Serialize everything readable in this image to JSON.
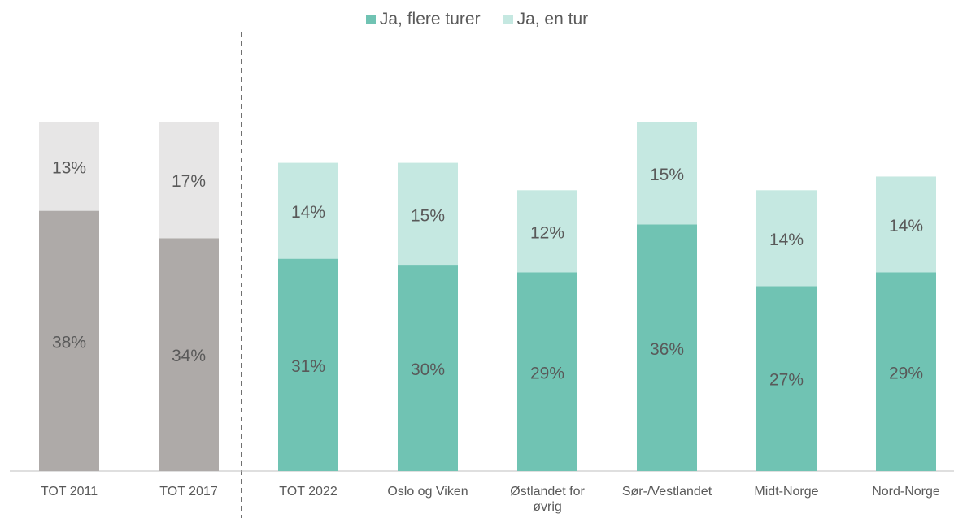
{
  "chart_data": {
    "type": "stacked_bar",
    "categories": [
      "TOT 2011",
      "TOT 2017",
      "TOT 2022",
      "Oslo og Viken",
      "Østlandet for øvrig",
      "Sør-/Vestlandet",
      "Midt-Norge",
      "Nord-Norge"
    ],
    "series": [
      {
        "name": "Ja, flere turer",
        "color": "#70c3b3",
        "point_colors": [
          "#aeaaa8",
          "#aeaaa8",
          "#70c3b3",
          "#70c3b3",
          "#70c3b3",
          "#70c3b3",
          "#70c3b3",
          "#70c3b3"
        ],
        "values": [
          38,
          34,
          31,
          30,
          29,
          36,
          27,
          29
        ],
        "value_labels": [
          "38%",
          "34%",
          "31%",
          "30%",
          "29%",
          "36%",
          "27%",
          "29%"
        ]
      },
      {
        "name": "Ja, en tur",
        "color": "#c5e8e1",
        "point_colors": [
          "#e7e6e6",
          "#e7e6e6",
          "#c5e8e1",
          "#c5e8e1",
          "#c5e8e1",
          "#c5e8e1",
          "#c5e8e1",
          "#c5e8e1"
        ],
        "values": [
          13,
          17,
          14,
          15,
          12,
          15,
          14,
          14
        ],
        "value_labels": [
          "13%",
          "17%",
          "14%",
          "15%",
          "12%",
          "15%",
          "14%",
          "14%"
        ]
      }
    ],
    "legend": "top"
  }
}
